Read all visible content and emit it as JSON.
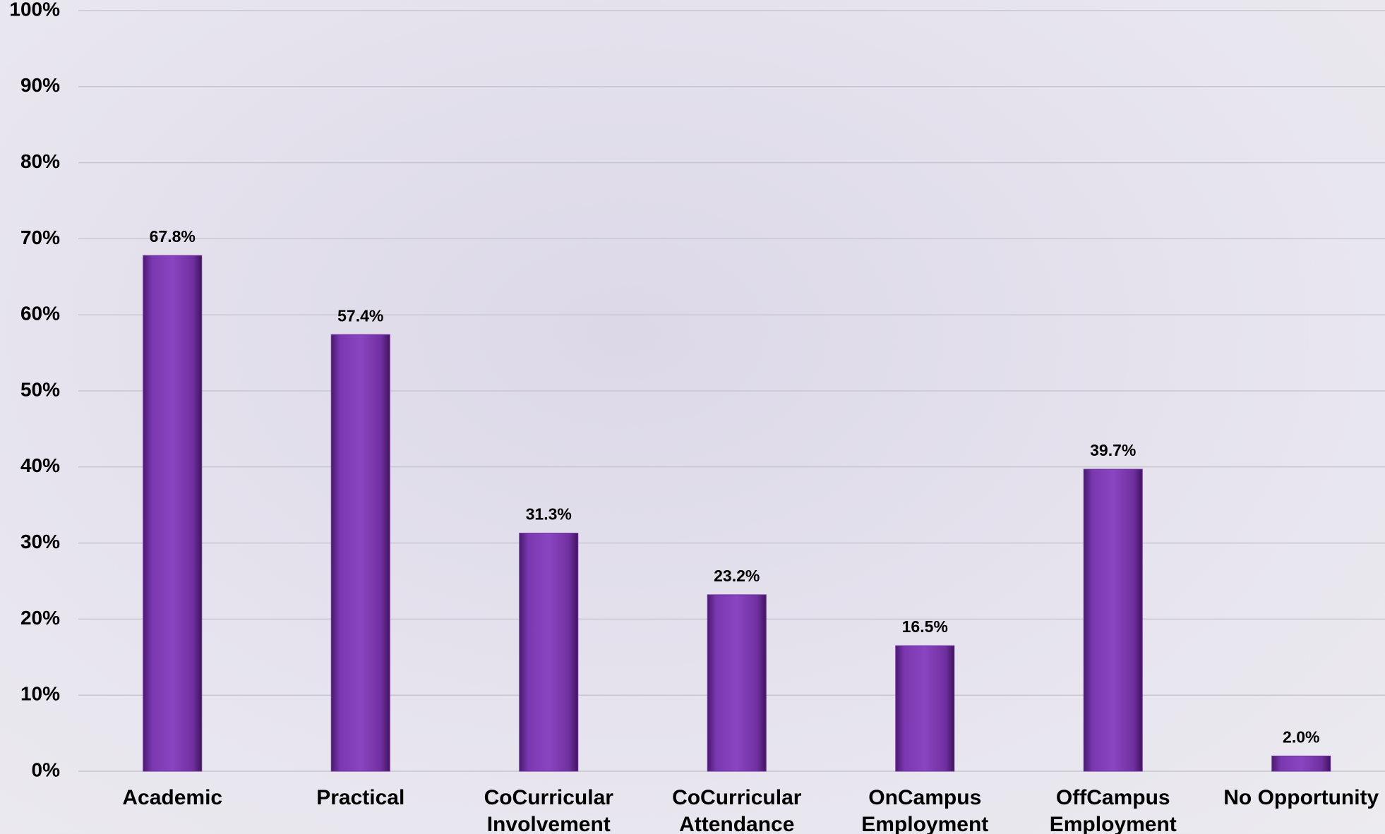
{
  "chart_data": {
    "type": "bar",
    "categories": [
      "Academic",
      "Practical",
      "CoCurricular Involvement",
      "CoCurricular Attendance",
      "OnCampus Employment",
      "OffCampus Employment",
      "No Opportunity"
    ],
    "values": [
      67.8,
      57.4,
      31.3,
      23.2,
      16.5,
      39.7,
      2.0
    ],
    "value_labels": [
      "67.8%",
      "57.4%",
      "31.3%",
      "23.2%",
      "16.5%",
      "39.7%",
      "2.0%"
    ],
    "color": "#7030a0",
    "ylim": [
      0,
      100
    ],
    "yticks": [
      {
        "value": 0,
        "label": "0%"
      },
      {
        "value": 10,
        "label": "10%"
      },
      {
        "value": 20,
        "label": "20%"
      },
      {
        "value": 30,
        "label": "30%"
      },
      {
        "value": 40,
        "label": "40%"
      },
      {
        "value": 50,
        "label": "50%"
      },
      {
        "value": 60,
        "label": "60%"
      },
      {
        "value": 70,
        "label": "70%"
      },
      {
        "value": 80,
        "label": "80%"
      },
      {
        "value": 90,
        "label": "90%"
      },
      {
        "value": 100,
        "label": "100%"
      }
    ],
    "grid": true
  }
}
